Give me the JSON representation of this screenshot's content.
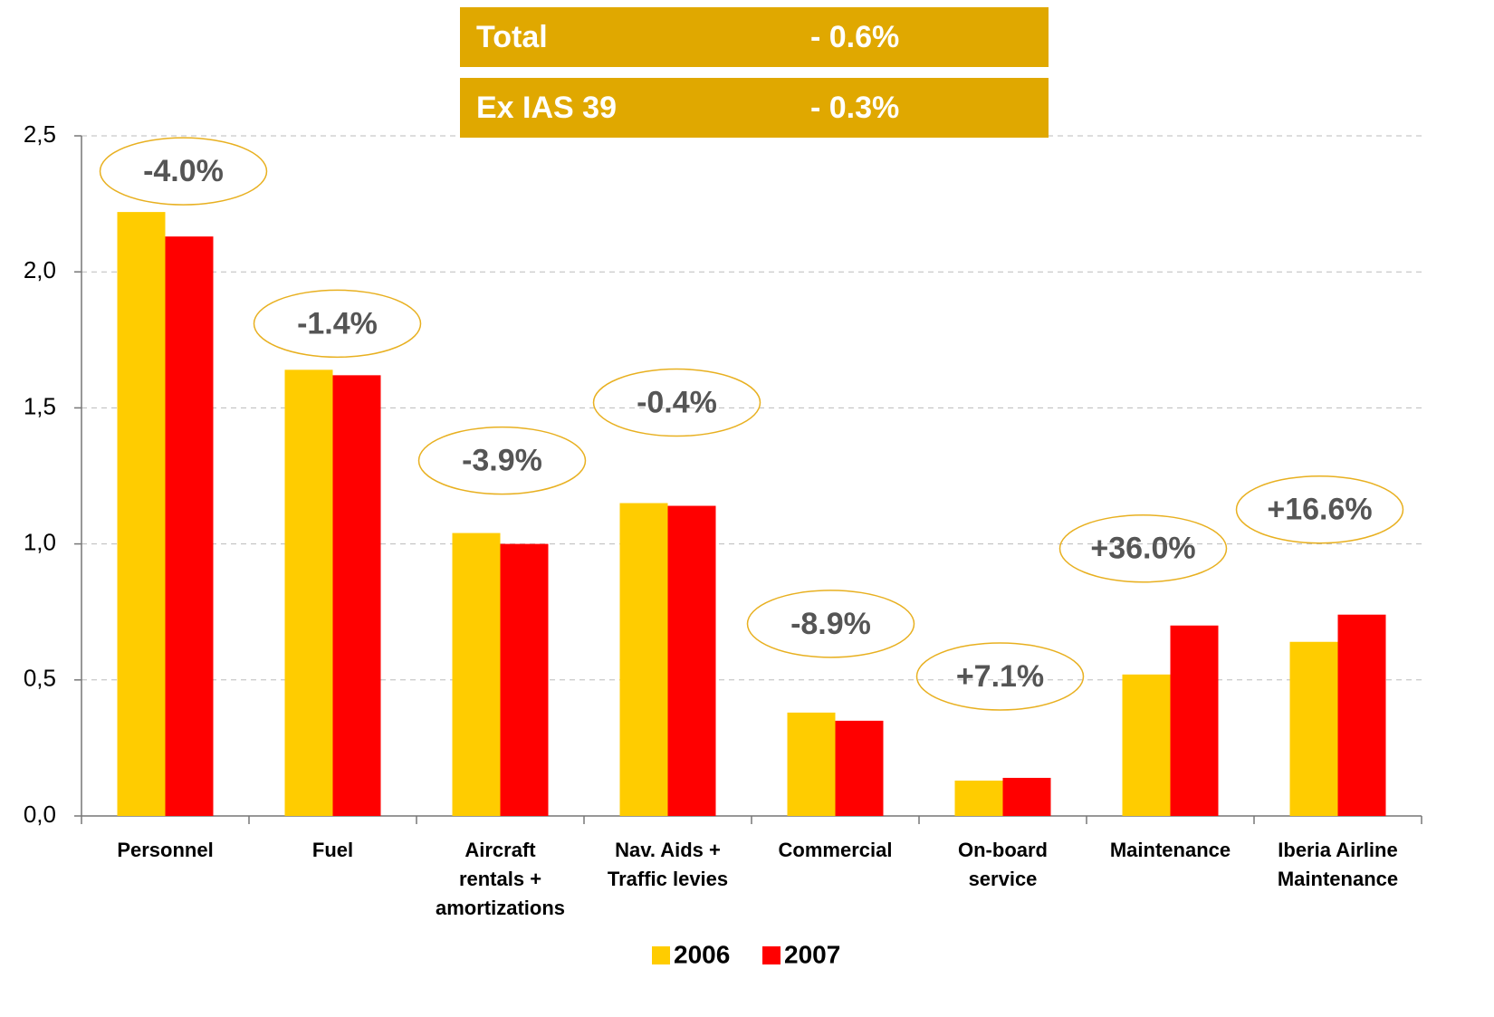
{
  "chart_data": {
    "type": "bar",
    "categories": [
      [
        "Personnel"
      ],
      [
        "Fuel"
      ],
      [
        "Aircraft",
        "rentals +",
        "amortizations"
      ],
      [
        "Nav. Aids +",
        "Traffic levies"
      ],
      [
        "Commercial"
      ],
      [
        "On-board",
        "service"
      ],
      [
        "Maintenance"
      ],
      [
        "Iberia Airline",
        "Maintenance"
      ]
    ],
    "series": [
      {
        "name": "2006",
        "color": "#ffcc00",
        "values": [
          2.22,
          1.64,
          1.04,
          1.15,
          0.38,
          0.13,
          0.52,
          0.64
        ]
      },
      {
        "name": "2007",
        "color": "#ff0000",
        "values": [
          2.13,
          1.62,
          1.0,
          1.14,
          0.35,
          0.14,
          0.7,
          0.74
        ]
      }
    ],
    "change_labels": [
      "-4.0%",
      "-1.4%",
      "-3.9%",
      "-0.4%",
      "-8.9%",
      "+7.1%",
      "+36.0%",
      "+16.6%"
    ],
    "summary": [
      {
        "label": "Total",
        "value": "- 0.6%"
      },
      {
        "label": "Ex IAS 39",
        "value": "- 0.3%"
      }
    ],
    "ylim": [
      0,
      2.5
    ],
    "yticks": [
      {
        "value": 0,
        "label": "0,0"
      },
      {
        "value": 0.5,
        "label": "0,5"
      },
      {
        "value": 1,
        "label": "1,0"
      },
      {
        "value": 1.5,
        "label": "1,5"
      },
      {
        "value": 2,
        "label": "2,0"
      },
      {
        "value": 2.5,
        "label": "2,5"
      }
    ],
    "grid": true,
    "legend": "bottom"
  }
}
